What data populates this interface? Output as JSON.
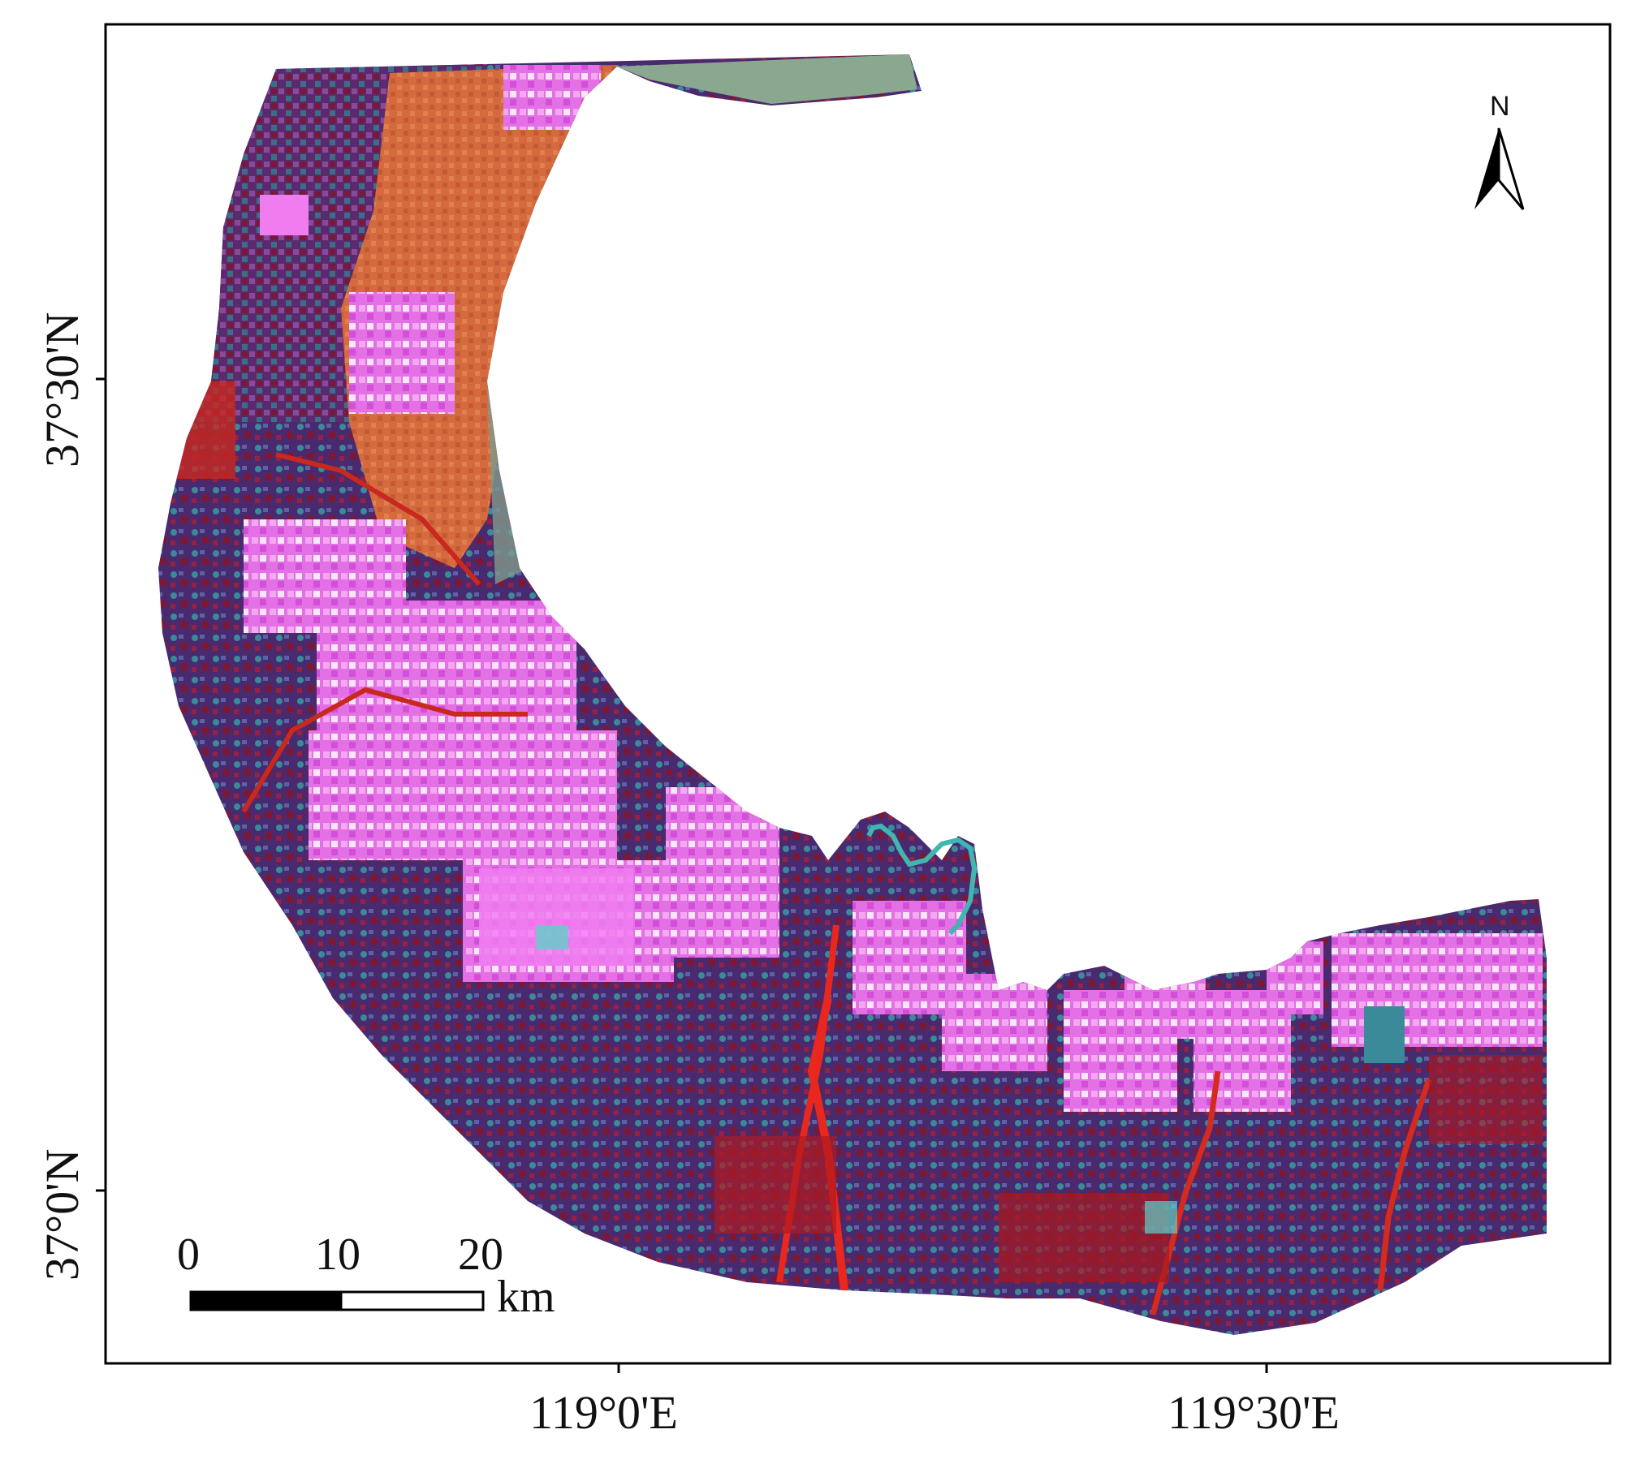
{
  "map": {
    "latitude_labels": [
      "37°30'N",
      "37°0'N"
    ],
    "longitude_labels": [
      "119°0'E",
      "119°30'E"
    ],
    "north_arrow": {
      "letter": "N",
      "icon": "north-arrow-icon"
    },
    "scale_bar": {
      "ticks": [
        "0",
        "10",
        "20"
      ],
      "unit": "km"
    },
    "colors": {
      "magenta": "#e865e8",
      "pink": "#f080f0",
      "orange": "#d9683a",
      "red": "#c8281e",
      "maroon": "#7a1838",
      "purple": "#5a2a78",
      "teal": "#3a8a9a",
      "cyan": "#60d0c8",
      "gray_green": "#8aa890",
      "frame": "#000000"
    }
  }
}
